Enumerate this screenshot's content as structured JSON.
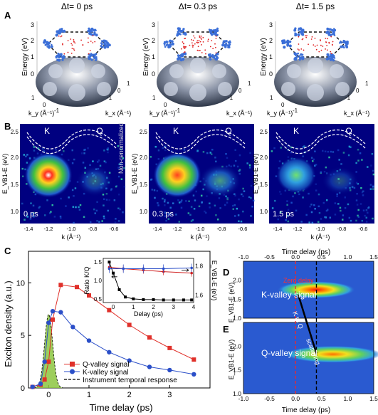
{
  "panel_letters": {
    "a": "A",
    "b": "B",
    "c": "C",
    "d": "D",
    "e": "E"
  },
  "panel_a": {
    "titles": [
      "Δt= 0 ps",
      "Δt= 0.3 ps",
      "Δt= 1.5 ps"
    ],
    "ylabel": "Energy (eV)",
    "yticks": [
      "0",
      "1",
      "2",
      "3"
    ],
    "ky_label": "k_y (Å⁻¹)",
    "kx_label": "k_x (Å⁻¹)",
    "kticks": [
      "1",
      "0",
      "-1"
    ],
    "colors": {
      "valley": "#3b6fd8",
      "dots": "#e02020",
      "surface": "#3a4458"
    }
  },
  "panel_b": {
    "labels": [
      "0 ps",
      "0.3 ps",
      "1.5 ps"
    ],
    "valley_k": "K",
    "valley_q": "Q",
    "ylabel": "E_VB1-E (eV)",
    "yticks": [
      "2.5",
      "2.0",
      "1.5",
      "1.0"
    ],
    "xlabel": "k (Å⁻¹)",
    "xticks": [
      "-1.4",
      "-1.2",
      "-1.0",
      "-0.8",
      "-0.6"
    ],
    "side_note": "Non-renormalized CB"
  },
  "chart_data": [
    {
      "type": "line",
      "xlabel": "Time delay (ps)",
      "ylabel": "Exciton density (a.u.)",
      "xlim": [
        -0.5,
        4.0
      ],
      "ylim": [
        0,
        13
      ],
      "xticks": [
        0,
        1,
        2,
        3
      ],
      "yticks": [
        0,
        5,
        10
      ],
      "series": [
        {
          "name": "Q-valley signal",
          "color": "#e0302a",
          "marker": "square",
          "x": [
            -0.4,
            -0.2,
            -0.1,
            0,
            0.1,
            0.3,
            0.7,
            1.0,
            1.5,
            2.0,
            2.5,
            3.0,
            3.6
          ],
          "y": [
            0.1,
            0.3,
            0.8,
            2.5,
            6.5,
            9.8,
            9.6,
            8.8,
            7.4,
            6.0,
            4.8,
            3.8,
            2.7
          ]
        },
        {
          "name": "K-valley signal",
          "color": "#2a4ec8",
          "marker": "circle",
          "x": [
            -0.4,
            -0.2,
            -0.1,
            0,
            0.1,
            0.3,
            0.6,
            1.0,
            1.5,
            2.0,
            2.5,
            3.0,
            3.6
          ],
          "y": [
            0.1,
            0.4,
            2.5,
            6.2,
            7.3,
            7.2,
            5.8,
            4.5,
            3.4,
            2.6,
            2.0,
            1.7,
            1.3
          ]
        }
      ],
      "irf": {
        "name": "Instrument temporal response",
        "color": "#8cc63f",
        "center": 0,
        "sigma": 0.1,
        "peak": 7.0
      },
      "inset": {
        "xlabel": "Delay (ps)",
        "ylabel_left": "Ratio K/Q",
        "ylabel_right": "E_VB1-E (eV)",
        "xlim": [
          -0.5,
          4
        ],
        "ylim_left": [
          0.4,
          1.6
        ],
        "ylim_right": [
          1.55,
          1.85
        ],
        "xticks": [
          0,
          1,
          2,
          3,
          4
        ],
        "yticks_left": [
          0.5,
          1.0,
          1.5
        ],
        "yticks_right": [
          1.6,
          1.8
        ],
        "ratio": {
          "x": [
            -0.2,
            0,
            0.3,
            0.6,
            1,
            1.5,
            2,
            2.5,
            3,
            3.5,
            3.9
          ],
          "y": [
            1.5,
            1.2,
            0.75,
            0.55,
            0.5,
            0.48,
            0.48,
            0.47,
            0.47,
            0.47,
            0.47
          ]
        },
        "e_red": {
          "x": [
            -0.2,
            0.5,
            1.5,
            2.5,
            3.9
          ],
          "y": [
            1.79,
            1.78,
            1.77,
            1.76,
            1.75
          ]
        },
        "e_blue": {
          "x": [
            -0.2,
            0.5,
            1.5,
            2.5,
            3.9
          ],
          "y": [
            1.78,
            1.78,
            1.78,
            1.78,
            1.785
          ]
        }
      }
    },
    {
      "type": "heatmap",
      "name_d": "K-valley signal",
      "name_e": "Q-valley signal",
      "xlabel_top": "Time delay (ps)",
      "xlabel_bottom": "Time delay (ps)",
      "ylabel": "E_VB1-E (eV)",
      "xlim": [
        -1.0,
        1.5
      ],
      "ylim": [
        1.0,
        2.5
      ],
      "xticks": [
        -1.0,
        -0.5,
        0.0,
        0.5,
        1.0,
        1.5
      ],
      "yticks": [
        1.0,
        1.5,
        2.0
      ],
      "zero_delay_label": "Zero delay",
      "arrow_label_1": "K to Q",
      "arrow_label_2": "scattering",
      "zero_delay_x": 0.0,
      "dashed_x": 0.4,
      "k_peak": {
        "t": 0.15,
        "e": 1.75
      },
      "q_peak": {
        "t": 0.55,
        "e": 1.83
      }
    }
  ]
}
